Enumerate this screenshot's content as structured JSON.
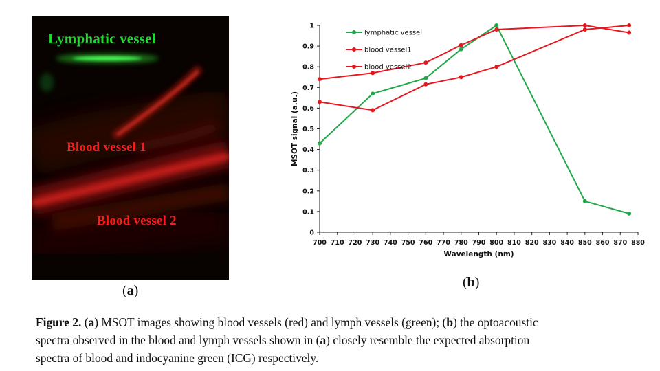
{
  "panel_a": {
    "labels": {
      "lymphatic": "Lymphatic vessel",
      "blood1": "Blood vessel 1",
      "blood2": "Blood vessel 2"
    },
    "sublabel": {
      "open": "(",
      "letter": "a",
      "close": ")"
    }
  },
  "panel_b": {
    "sublabel": {
      "open": "(",
      "letter": "b",
      "close": ")"
    }
  },
  "chart_data": {
    "type": "line",
    "title": "",
    "xlabel": "Wavelength (nm)",
    "ylabel": "MSOT signal (a.u.)",
    "xlim": [
      700,
      880
    ],
    "ylim": [
      0,
      1
    ],
    "xticks": [
      "700",
      "710",
      "720",
      "730",
      "740",
      "750",
      "760",
      "770",
      "780",
      "790",
      "800",
      "810",
      "820",
      "830",
      "840",
      "850",
      "860",
      "870",
      "880"
    ],
    "yticks": [
      "0",
      "0.1",
      "0.2",
      "0.3",
      "0.4",
      "0.5",
      "0.6",
      "0.7",
      "0.8",
      "0.9",
      "1"
    ],
    "legend_position": "top-left",
    "grid": false,
    "series": [
      {
        "name": "lymphatic vessel",
        "color": "#22a84a",
        "x": [
          700,
          730,
          760,
          780,
          800,
          850,
          875
        ],
        "y": [
          0.43,
          0.67,
          0.745,
          0.885,
          1.0,
          0.15,
          0.09
        ]
      },
      {
        "name": "blood vessel1",
        "color": "#e8171f",
        "x": [
          700,
          730,
          760,
          780,
          800,
          850,
          875
        ],
        "y": [
          0.74,
          0.77,
          0.82,
          0.905,
          0.98,
          1.0,
          0.965
        ]
      },
      {
        "name": "blood vessel2",
        "color": "#e8171f",
        "x": [
          700,
          730,
          760,
          780,
          800,
          850,
          875
        ],
        "y": [
          0.63,
          0.59,
          0.715,
          0.75,
          0.8,
          0.98,
          1.0
        ]
      }
    ]
  },
  "caption": {
    "figure_label": "Figure 2.",
    "l1_a": " (",
    "l1_b": "a",
    "l1_c": ") MSOT images showing blood vessels (red) and lymph vessels (green); (",
    "l1_d": "b",
    "l1_e": ") the optoacoustic",
    "l2_a": "spectra observed in the blood and lymph vessels shown in (",
    "l2_b": "a",
    "l2_c": ") closely resemble the expected absorption",
    "l3": "spectra of blood and indocyanine green (ICG) respectively."
  }
}
